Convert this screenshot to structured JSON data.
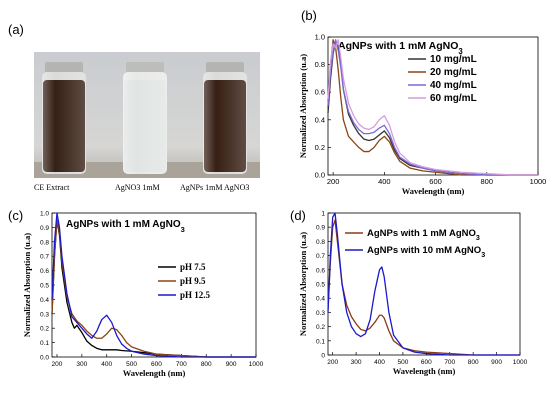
{
  "panels": {
    "a": {
      "label": "(a)",
      "vials": [
        {
          "label": "CE Extract",
          "liquid": "#2a1408"
        },
        {
          "label": "AgNO3 1mM",
          "liquid": "#dfe3e2"
        },
        {
          "label": "AgNPs 1mM AgNO3",
          "liquid": "#2c1307"
        }
      ]
    },
    "b": {
      "label": "(b)"
    },
    "c": {
      "label": "(c)"
    },
    "d": {
      "label": "(d)"
    }
  },
  "chart_data": [
    {
      "id": "b",
      "type": "line",
      "title": "AgNPs with 1 mM AgNO3",
      "xlabel": "Wavelength (nm)",
      "ylabel": "Normalized Absorption (u.a)",
      "xlim": [
        180,
        1000
      ],
      "ylim": [
        0,
        1.0
      ],
      "xticks": [
        200,
        400,
        600,
        800,
        1000
      ],
      "yticks": [
        0.0,
        0.2,
        0.4,
        0.6,
        0.8,
        1.0
      ],
      "ytick_labels": [
        "0.0",
        "0.2",
        "0.4",
        "0.6",
        "0.8",
        "1.0"
      ],
      "legend": "right",
      "series": [
        {
          "name": "10 mg/mL",
          "color": "#333333",
          "x": [
            180,
            190,
            200,
            210,
            220,
            230,
            240,
            260,
            280,
            300,
            320,
            340,
            360,
            380,
            400,
            420,
            440,
            460,
            500,
            550,
            600,
            650,
            700,
            800,
            900,
            1000
          ],
          "y": [
            0.45,
            0.7,
            0.88,
            0.97,
            0.93,
            0.8,
            0.62,
            0.44,
            0.36,
            0.3,
            0.26,
            0.25,
            0.26,
            0.29,
            0.32,
            0.27,
            0.18,
            0.12,
            0.07,
            0.05,
            0.03,
            0.02,
            0.01,
            0.0,
            0.0,
            0.0
          ]
        },
        {
          "name": "20 mg/mL",
          "color": "#8b4513",
          "x": [
            180,
            190,
            200,
            210,
            220,
            230,
            240,
            260,
            280,
            300,
            320,
            340,
            360,
            380,
            400,
            420,
            440,
            460,
            500,
            550,
            600,
            650,
            700,
            800,
            900,
            1000
          ],
          "y": [
            0.5,
            0.8,
            0.98,
            0.92,
            0.76,
            0.56,
            0.4,
            0.28,
            0.24,
            0.2,
            0.17,
            0.17,
            0.2,
            0.25,
            0.28,
            0.24,
            0.16,
            0.1,
            0.05,
            0.03,
            0.02,
            0.01,
            0.0,
            0.0,
            0.0,
            0.0
          ]
        },
        {
          "name": "40 mg/mL",
          "color": "#7a6bd6",
          "x": [
            180,
            190,
            200,
            210,
            220,
            230,
            240,
            260,
            280,
            300,
            320,
            340,
            360,
            380,
            400,
            420,
            440,
            460,
            500,
            550,
            600,
            650,
            700,
            800,
            900,
            1000
          ],
          "y": [
            0.5,
            0.75,
            0.9,
            0.98,
            0.9,
            0.78,
            0.62,
            0.46,
            0.38,
            0.33,
            0.3,
            0.3,
            0.31,
            0.34,
            0.36,
            0.3,
            0.2,
            0.13,
            0.08,
            0.05,
            0.03,
            0.02,
            0.01,
            0.0,
            0.0,
            0.0
          ]
        },
        {
          "name": "60 mg/mL",
          "color": "#d79be0",
          "x": [
            180,
            190,
            200,
            210,
            220,
            230,
            240,
            260,
            280,
            300,
            320,
            340,
            360,
            380,
            400,
            420,
            440,
            460,
            500,
            550,
            600,
            650,
            700,
            800,
            900,
            1000
          ],
          "y": [
            0.55,
            0.82,
            0.95,
            0.92,
            0.98,
            0.85,
            0.7,
            0.52,
            0.43,
            0.37,
            0.34,
            0.33,
            0.35,
            0.4,
            0.43,
            0.36,
            0.24,
            0.16,
            0.09,
            0.06,
            0.04,
            0.03,
            0.02,
            0.01,
            0.0,
            0.0
          ]
        }
      ]
    },
    {
      "id": "c",
      "type": "line",
      "title": "AgNPs with 1 mM AgNO3",
      "xlabel": "Wavelength (nm)",
      "ylabel": "Normalized Absorption (u.a)",
      "xlim": [
        180,
        1000
      ],
      "ylim": [
        0,
        1.0
      ],
      "xticks": [
        200,
        300,
        400,
        500,
        600,
        700,
        800,
        900,
        1000
      ],
      "yticks": [
        0.0,
        0.1,
        0.2,
        0.3,
        0.4,
        0.5,
        0.6,
        0.7,
        0.8,
        0.9,
        1.0
      ],
      "ytick_labels": [
        "0.0",
        "0.1",
        "0.2",
        "0.3",
        "0.4",
        "0.5",
        "0.6",
        "0.7",
        "0.8",
        "0.9",
        "1.0"
      ],
      "legend": "right",
      "series": [
        {
          "name": "pH 7.5",
          "color": "#000000",
          "x": [
            180,
            190,
            200,
            210,
            220,
            240,
            260,
            270,
            280,
            300,
            320,
            340,
            360,
            380,
            400,
            420,
            440,
            460,
            500,
            550,
            600,
            700,
            800,
            900,
            1000
          ],
          "y": [
            0.3,
            0.7,
            0.95,
            0.85,
            0.62,
            0.38,
            0.24,
            0.2,
            0.22,
            0.17,
            0.11,
            0.08,
            0.06,
            0.05,
            0.05,
            0.05,
            0.05,
            0.045,
            0.04,
            0.03,
            0.02,
            0.01,
            0.0,
            0.0,
            0.0
          ]
        },
        {
          "name": "pH 9.5",
          "color": "#8b4513",
          "x": [
            180,
            190,
            200,
            210,
            220,
            240,
            260,
            280,
            300,
            320,
            340,
            360,
            380,
            400,
            420,
            440,
            460,
            480,
            500,
            550,
            600,
            700,
            800,
            900,
            1000
          ],
          "y": [
            0.3,
            0.7,
            0.95,
            0.87,
            0.66,
            0.42,
            0.3,
            0.25,
            0.22,
            0.18,
            0.15,
            0.13,
            0.13,
            0.16,
            0.2,
            0.19,
            0.15,
            0.1,
            0.07,
            0.04,
            0.02,
            0.01,
            0.0,
            0.0,
            0.0
          ]
        },
        {
          "name": "pH 12.5",
          "color": "#1a1acc",
          "x": [
            180,
            190,
            200,
            210,
            220,
            240,
            260,
            280,
            300,
            320,
            340,
            360,
            380,
            400,
            420,
            440,
            460,
            480,
            500,
            550,
            600,
            700,
            800,
            900,
            1000
          ],
          "y": [
            0.4,
            0.8,
            1.0,
            0.9,
            0.7,
            0.44,
            0.28,
            0.24,
            0.2,
            0.16,
            0.13,
            0.18,
            0.26,
            0.29,
            0.24,
            0.15,
            0.09,
            0.06,
            0.04,
            0.02,
            0.01,
            0.0,
            0.0,
            0.0,
            0.0
          ]
        }
      ]
    },
    {
      "id": "d",
      "type": "line",
      "title": "",
      "xlabel": "Wavelength (nm)",
      "ylabel": "Normalized Absorption (u.a)",
      "xlim": [
        180,
        1000
      ],
      "ylim": [
        0,
        1.0
      ],
      "xticks": [
        200,
        300,
        400,
        500,
        600,
        700,
        800,
        900,
        1000
      ],
      "yticks": [
        0.0,
        0.1,
        0.2,
        0.3,
        0.4,
        0.5,
        0.6,
        0.7,
        0.8,
        0.9,
        1.0
      ],
      "ytick_labels": [
        "0",
        "0.1",
        "0.2",
        "0.3",
        "0.4",
        "0.5",
        "0.6",
        "0.7",
        "0.8",
        "0.9",
        "1"
      ],
      "legend": "top-right",
      "series": [
        {
          "name": "AgNPs with 1 mM AgNO3",
          "color": "#8b3a1a",
          "x": [
            180,
            190,
            200,
            210,
            220,
            240,
            260,
            280,
            300,
            320,
            340,
            360,
            380,
            400,
            410,
            420,
            440,
            460,
            500,
            550,
            600,
            700,
            800,
            900,
            1000
          ],
          "y": [
            0.32,
            0.65,
            0.9,
            0.95,
            0.8,
            0.5,
            0.35,
            0.27,
            0.22,
            0.18,
            0.17,
            0.19,
            0.23,
            0.28,
            0.28,
            0.26,
            0.17,
            0.1,
            0.05,
            0.03,
            0.02,
            0.01,
            0.0,
            0.0,
            0.0
          ]
        },
        {
          "name": "AgNPs with 10 mM AgNO3",
          "color": "#1a1acc",
          "x": [
            180,
            190,
            200,
            210,
            220,
            240,
            260,
            280,
            300,
            320,
            340,
            360,
            380,
            400,
            410,
            420,
            440,
            460,
            500,
            550,
            600,
            700,
            800,
            900,
            1000
          ],
          "y": [
            0.3,
            0.7,
            0.97,
            1.0,
            0.85,
            0.5,
            0.3,
            0.2,
            0.15,
            0.13,
            0.15,
            0.25,
            0.45,
            0.6,
            0.62,
            0.55,
            0.3,
            0.14,
            0.05,
            0.02,
            0.01,
            0.0,
            0.0,
            0.0,
            0.0
          ]
        }
      ]
    }
  ]
}
